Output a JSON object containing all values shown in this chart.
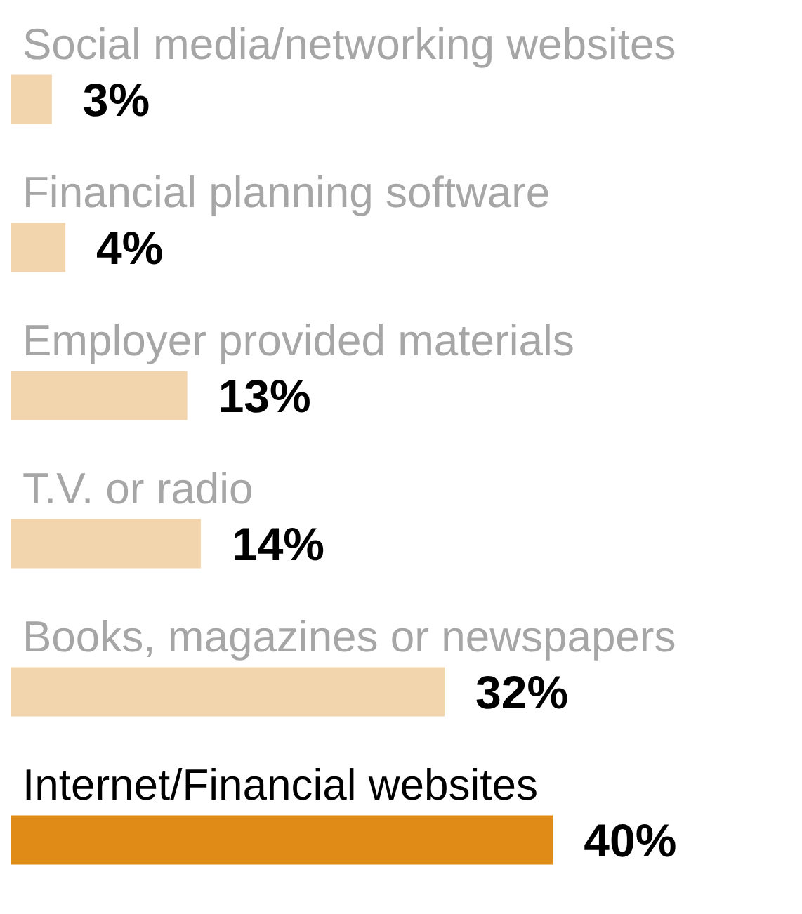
{
  "chart_data": {
    "type": "bar",
    "orientation": "horizontal",
    "categories": [
      "Social media/networking websites",
      "Financial planning software",
      "Employer provided materials",
      "T.V. or radio",
      "Books, magazines or newspapers",
      "Internet/Financial websites"
    ],
    "values": [
      3,
      4,
      13,
      14,
      32,
      40
    ],
    "colors": [
      "#f3d5ad",
      "#f3d5ad",
      "#f3d5ad",
      "#f3d5ad",
      "#f3d5ad",
      "#e08a17"
    ],
    "value_labels": [
      "3%",
      "4%",
      "13%",
      "14%",
      "32%",
      "40%"
    ]
  }
}
